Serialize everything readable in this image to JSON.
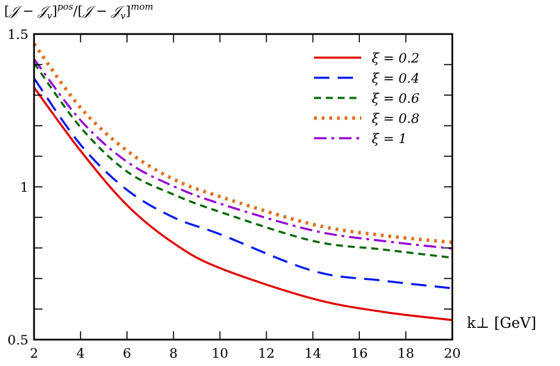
{
  "chart_data": {
    "type": "line",
    "title": "",
    "ylabel_parts": {
      "open": "[",
      "J": "𝒥",
      "minus": " − ",
      "Jv": "𝒥",
      "sub": "v",
      "close": "]",
      "sup_pos": "pos",
      "slash": "/",
      "sup_mom": "mom"
    },
    "ylabel": "[𝒥 − 𝒥v]pos/[𝒥 − 𝒥v]mom",
    "xlabel": "k⊥ [GeV]",
    "xlabel_parts": {
      "k": "k",
      "sub": "⊥",
      "unit": "[GeV]"
    },
    "xlim": [
      2,
      20
    ],
    "ylim": [
      0.5,
      1.5
    ],
    "xticks": [
      2,
      4,
      6,
      8,
      10,
      12,
      14,
      16,
      18,
      20
    ],
    "xtick_labels": [
      "2",
      "4",
      "6",
      "8",
      "10",
      "12",
      "14",
      "16",
      "18",
      "20"
    ],
    "yticks": [
      0.5,
      1,
      1.5
    ],
    "ytick_labels": [
      "0.5",
      "1",
      "1.5"
    ],
    "grid": false,
    "legend_position": "top-right",
    "x": [
      2,
      4,
      6,
      8,
      10,
      14,
      17,
      20
    ],
    "series": [
      {
        "name": "ξ = 0.2",
        "color": "#e00000",
        "dash": "solid",
        "values": [
          1.325,
          1.118,
          0.94,
          0.816,
          0.734,
          0.634,
          0.591,
          0.564
        ]
      },
      {
        "name": "ξ = 0.4",
        "color": "#0018f0",
        "dash": "long-dash",
        "values": [
          1.355,
          1.138,
          0.99,
          0.9,
          0.845,
          0.725,
          0.693,
          0.668
        ]
      },
      {
        "name": "ξ = 0.6",
        "color": "#006400",
        "dash": "short-dash",
        "values": [
          1.405,
          1.195,
          1.05,
          0.975,
          0.918,
          0.823,
          0.795,
          0.768
        ]
      },
      {
        "name": "ξ = 0.8",
        "color": "#e07020",
        "dash": "dotted",
        "values": [
          1.468,
          1.259,
          1.118,
          1.025,
          0.968,
          0.877,
          0.841,
          0.818
        ]
      },
      {
        "name": "ξ = 1",
        "color": "#9400d3",
        "dash": "dash-dot",
        "values": [
          1.418,
          1.218,
          1.082,
          1.002,
          0.945,
          0.857,
          0.823,
          0.798
        ]
      }
    ]
  }
}
